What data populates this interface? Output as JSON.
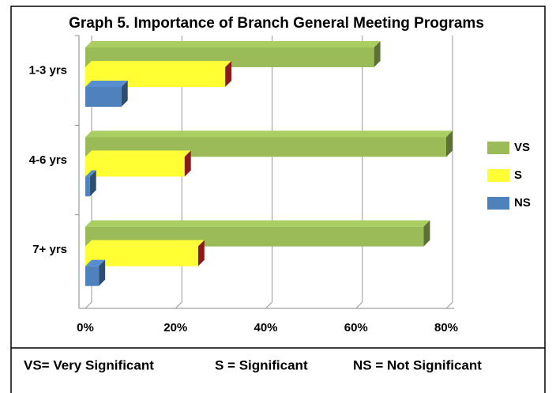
{
  "chart_data": {
    "type": "bar3d_horizontal",
    "title": "Graph 5. Importance of Branch General Meeting Programs",
    "categories": [
      "1-3 yrs",
      "4-6 yrs",
      "7+ yrs"
    ],
    "series": [
      {
        "name": "VS",
        "color": "#9bbb59",
        "values": [
          64,
          80,
          75
        ]
      },
      {
        "name": "S",
        "color": "#ffff33",
        "values": [
          31,
          22,
          25
        ]
      },
      {
        "name": "NS",
        "color": "#4f81bd",
        "values": [
          8,
          1,
          3
        ]
      }
    ],
    "xlim": [
      0,
      80
    ],
    "xticks": [
      {
        "value": 0,
        "label": "0%"
      },
      {
        "value": 20,
        "label": "20%"
      },
      {
        "value": 40,
        "label": "40%"
      },
      {
        "value": 60,
        "label": "60%"
      },
      {
        "value": 80,
        "label": "80%"
      }
    ],
    "grid": true,
    "legend": "right",
    "footnotes": [
      "VS= Very Significant",
      "S = Significant",
      "NS = Not Significant"
    ]
  }
}
